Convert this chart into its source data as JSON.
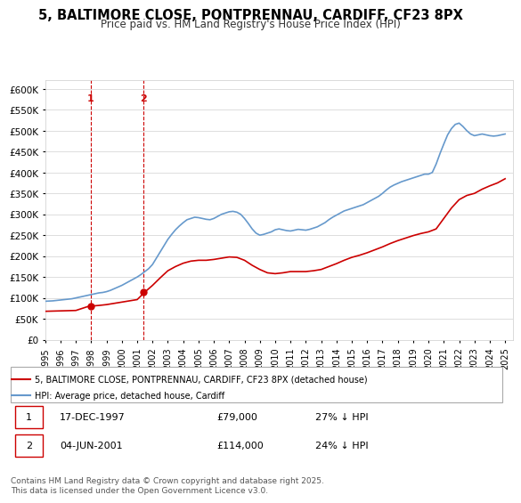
{
  "title": "5, BALTIMORE CLOSE, PONTPRENNAU, CARDIFF, CF23 8PX",
  "subtitle": "Price paid vs. HM Land Registry's House Price Index (HPI)",
  "title_fontsize": 11,
  "subtitle_fontsize": 9.5,
  "background_color": "#ffffff",
  "plot_bg_color": "#ffffff",
  "grid_color": "#dddddd",
  "ylim": [
    0,
    620000
  ],
  "yticks": [
    0,
    50000,
    100000,
    150000,
    200000,
    250000,
    300000,
    350000,
    400000,
    450000,
    500000,
    550000,
    600000
  ],
  "ylabel_format": "£{0}K",
  "legend_label_red": "5, BALTIMORE CLOSE, PONTPRENNAU, CARDIFF, CF23 8PX (detached house)",
  "legend_label_blue": "HPI: Average price, detached house, Cardiff",
  "transaction1_label": "1",
  "transaction1_date": "17-DEC-1997",
  "transaction1_price": "£79,000",
  "transaction1_hpi": "27% ↓ HPI",
  "transaction2_label": "2",
  "transaction2_date": "04-JUN-2001",
  "transaction2_price": "£114,000",
  "transaction2_hpi": "24% ↓ HPI",
  "footer": "Contains HM Land Registry data © Crown copyright and database right 2025.\nThis data is licensed under the Open Government Licence v3.0.",
  "hpi_years": [
    1995,
    1995.25,
    1995.5,
    1995.75,
    1996,
    1996.25,
    1996.5,
    1996.75,
    1997,
    1997.25,
    1997.5,
    1997.75,
    1998,
    1998.25,
    1998.5,
    1998.75,
    1999,
    1999.25,
    1999.5,
    1999.75,
    2000,
    2000.25,
    2000.5,
    2000.75,
    2001,
    2001.25,
    2001.5,
    2001.75,
    2002,
    2002.25,
    2002.5,
    2002.75,
    2003,
    2003.25,
    2003.5,
    2003.75,
    2004,
    2004.25,
    2004.5,
    2004.75,
    2005,
    2005.25,
    2005.5,
    2005.75,
    2006,
    2006.25,
    2006.5,
    2006.75,
    2007,
    2007.25,
    2007.5,
    2007.75,
    2008,
    2008.25,
    2008.5,
    2008.75,
    2009,
    2009.25,
    2009.5,
    2009.75,
    2010,
    2010.25,
    2010.5,
    2010.75,
    2011,
    2011.25,
    2011.5,
    2011.75,
    2012,
    2012.25,
    2012.5,
    2012.75,
    2013,
    2013.25,
    2013.5,
    2013.75,
    2014,
    2014.25,
    2014.5,
    2014.75,
    2015,
    2015.25,
    2015.5,
    2015.75,
    2016,
    2016.25,
    2016.5,
    2016.75,
    2017,
    2017.25,
    2017.5,
    2017.75,
    2018,
    2018.25,
    2018.5,
    2018.75,
    2019,
    2019.25,
    2019.5,
    2019.75,
    2020,
    2020.25,
    2020.5,
    2020.75,
    2021,
    2021.25,
    2021.5,
    2021.75,
    2022,
    2022.25,
    2022.5,
    2022.75,
    2023,
    2023.25,
    2023.5,
    2023.75,
    2024,
    2024.25,
    2024.5,
    2024.75,
    2025
  ],
  "hpi_values": [
    92000,
    92500,
    93000,
    94000,
    95000,
    96000,
    97000,
    98000,
    100000,
    102000,
    104000,
    106000,
    108000,
    110000,
    112000,
    113000,
    115000,
    118000,
    122000,
    126000,
    130000,
    135000,
    140000,
    145000,
    150000,
    156000,
    163000,
    170000,
    180000,
    195000,
    210000,
    225000,
    240000,
    252000,
    263000,
    272000,
    280000,
    287000,
    290000,
    293000,
    292000,
    290000,
    288000,
    287000,
    290000,
    295000,
    300000,
    303000,
    306000,
    307000,
    305000,
    300000,
    290000,
    278000,
    265000,
    255000,
    250000,
    252000,
    255000,
    258000,
    263000,
    265000,
    263000,
    261000,
    260000,
    262000,
    264000,
    263000,
    262000,
    264000,
    267000,
    270000,
    275000,
    280000,
    287000,
    293000,
    298000,
    303000,
    308000,
    311000,
    314000,
    317000,
    320000,
    323000,
    328000,
    333000,
    338000,
    343000,
    350000,
    358000,
    365000,
    370000,
    374000,
    378000,
    381000,
    384000,
    387000,
    390000,
    393000,
    396000,
    396000,
    400000,
    420000,
    445000,
    468000,
    490000,
    505000,
    515000,
    518000,
    510000,
    500000,
    492000,
    488000,
    490000,
    492000,
    490000,
    488000,
    487000,
    488000,
    490000,
    492000
  ],
  "red_years": [
    1995,
    1995.5,
    1996,
    1996.5,
    1997,
    1997.75,
    1998,
    1998.5,
    1999,
    1999.5,
    2000,
    2000.5,
    2001,
    2001.5,
    2002,
    2002.5,
    2003,
    2003.5,
    2004,
    2004.5,
    2005,
    2005.5,
    2006,
    2006.5,
    2007,
    2007.5,
    2008,
    2008.5,
    2009,
    2009.5,
    2010,
    2010.5,
    2011,
    2011.5,
    2012,
    2012.5,
    2013,
    2013.5,
    2014,
    2014.5,
    2015,
    2015.5,
    2016,
    2016.5,
    2017,
    2017.5,
    2018,
    2018.5,
    2019,
    2019.5,
    2020,
    2020.5,
    2021,
    2021.5,
    2022,
    2022.5,
    2023,
    2023.5,
    2024,
    2024.5,
    2025
  ],
  "red_values": [
    68000,
    68500,
    69000,
    69500,
    70000,
    79000,
    80500,
    82000,
    84000,
    87000,
    90000,
    93000,
    96000,
    114000,
    130000,
    148000,
    165000,
    175000,
    183000,
    188000,
    190000,
    190000,
    192000,
    195000,
    198000,
    197000,
    190000,
    178000,
    168000,
    160000,
    158000,
    160000,
    163000,
    163000,
    163000,
    165000,
    168000,
    175000,
    182000,
    190000,
    197000,
    202000,
    208000,
    215000,
    222000,
    230000,
    237000,
    243000,
    249000,
    254000,
    258000,
    265000,
    290000,
    315000,
    335000,
    345000,
    350000,
    360000,
    368000,
    375000,
    385000
  ],
  "xtick_years": [
    1995,
    1996,
    1997,
    1998,
    1999,
    2000,
    2001,
    2002,
    2003,
    2004,
    2005,
    2006,
    2007,
    2008,
    2009,
    2010,
    2011,
    2012,
    2013,
    2014,
    2015,
    2016,
    2017,
    2018,
    2019,
    2020,
    2021,
    2022,
    2023,
    2024,
    2025
  ],
  "marker1_x": 1997.958,
  "marker1_y": 79000,
  "marker2_x": 2001.417,
  "marker2_y": 114000,
  "vline1_x": 1997.958,
  "vline2_x": 2001.417,
  "red_color": "#cc0000",
  "blue_color": "#6699cc",
  "vline_color": "#cc0000",
  "marker_color": "#cc0000",
  "annotation_color": "#cc0000"
}
